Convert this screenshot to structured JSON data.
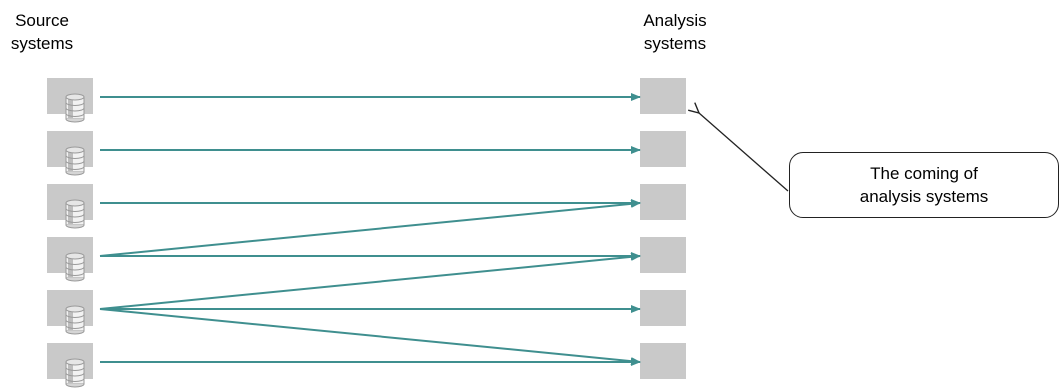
{
  "headings": {
    "source": [
      "Source",
      "systems"
    ],
    "analysis": [
      "Analysis",
      "systems"
    ]
  },
  "callout": {
    "lines": [
      "The coming of",
      "analysis systems"
    ]
  },
  "colors": {
    "system_box": "#c9c9c9",
    "arrow": "#3f8f8f",
    "callout_border": "#222222",
    "database_icon": "#9a9a9a"
  },
  "source_systems": [
    {
      "name": "source-system-1",
      "icon": "database-icon"
    },
    {
      "name": "source-system-2",
      "icon": "database-icon"
    },
    {
      "name": "source-system-3",
      "icon": "database-icon"
    },
    {
      "name": "source-system-4",
      "icon": "database-icon"
    },
    {
      "name": "source-system-5",
      "icon": "database-icon"
    },
    {
      "name": "source-system-6",
      "icon": "database-icon"
    }
  ],
  "analysis_systems": [
    {
      "name": "analysis-system-1"
    },
    {
      "name": "analysis-system-2"
    },
    {
      "name": "analysis-system-3"
    },
    {
      "name": "analysis-system-4"
    },
    {
      "name": "analysis-system-5"
    },
    {
      "name": "analysis-system-6"
    }
  ],
  "connections": [
    {
      "from": 1,
      "to": 1
    },
    {
      "from": 2,
      "to": 2
    },
    {
      "from": 3,
      "to": 3
    },
    {
      "from": 4,
      "to": 3
    },
    {
      "from": 4,
      "to": 4
    },
    {
      "from": 5,
      "to": 4
    },
    {
      "from": 5,
      "to": 5
    },
    {
      "from": 5,
      "to": 6
    },
    {
      "from": 6,
      "to": 6
    }
  ],
  "callout_pointer": {
    "points_to": 1
  }
}
